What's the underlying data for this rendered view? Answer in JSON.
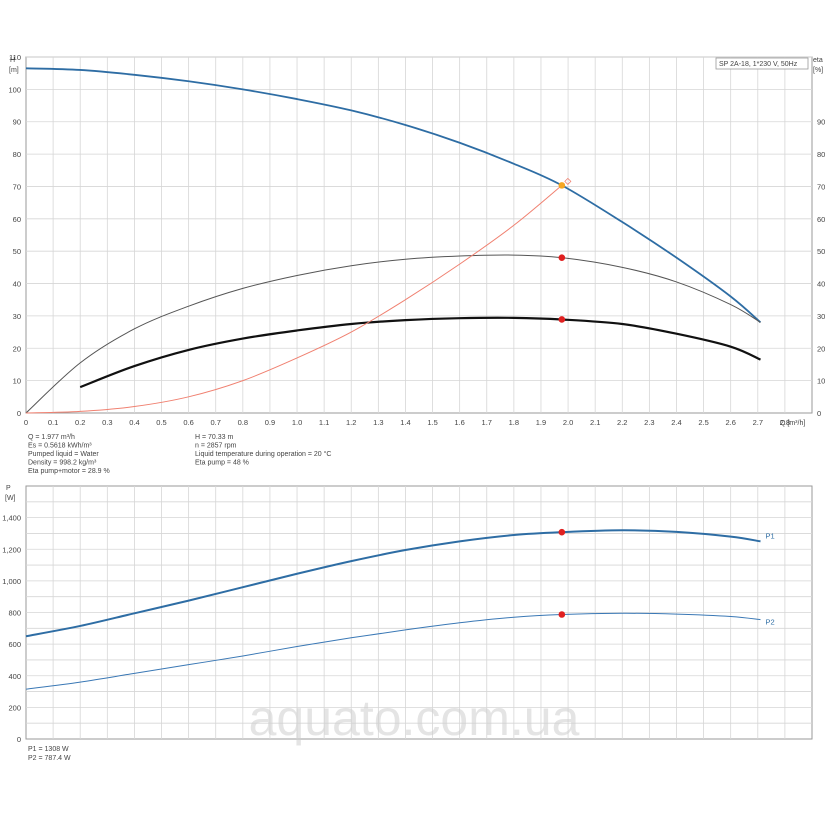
{
  "chart_data": [
    {
      "type": "line",
      "title": "SP 2A-18, 1*230 V, 50Hz",
      "xlabel": "Q [m³/h]",
      "ylabel_left": [
        "H",
        "[m]"
      ],
      "ylabel_right": [
        "eta",
        "[%]"
      ],
      "xlim": [
        0,
        2.9
      ],
      "ylim": [
        0,
        110
      ],
      "y2lim": [
        0,
        110
      ],
      "grid": true,
      "x_ticks": [
        "0",
        "0.1",
        "0.2",
        "0.3",
        "0.4",
        "0.5",
        "0.6",
        "0.7",
        "0.8",
        "0.9",
        "1.0",
        "1.1",
        "1.2",
        "1.3",
        "1.4",
        "1.5",
        "1.6",
        "1.7",
        "1.8",
        "1.9",
        "2.0",
        "2.1",
        "2.2",
        "2.3",
        "2.4",
        "2.5",
        "2.6",
        "2.7",
        "2.8"
      ],
      "y_ticks_left": [
        "0",
        "10",
        "20",
        "30",
        "40",
        "50",
        "60",
        "70",
        "80",
        "90",
        "100",
        "110"
      ],
      "y_ticks_right": [
        "0",
        "10",
        "20",
        "30",
        "40",
        "50",
        "60",
        "70",
        "80",
        "90"
      ],
      "series": [
        {
          "color": "#2e6da4",
          "axis": "left",
          "x": [
            0,
            0.2,
            0.4,
            0.6,
            0.8,
            1.0,
            1.2,
            1.4,
            1.6,
            1.8,
            1.977,
            2.2,
            2.4,
            2.6,
            2.71
          ],
          "values": [
            106.5,
            106,
            104.5,
            102.5,
            100,
            97,
            93.5,
            89,
            83.5,
            77,
            70.33,
            59,
            48,
            36,
            28
          ]
        },
        {
          "color": "#555555",
          "axis": "right",
          "x": [
            0,
            0.2,
            0.4,
            0.6,
            0.8,
            1.0,
            1.2,
            1.4,
            1.6,
            1.8,
            1.977,
            2.2,
            2.4,
            2.6,
            2.71
          ],
          "values": [
            0,
            15.5,
            26,
            33,
            38.5,
            42.5,
            45.5,
            47.5,
            48.5,
            48.8,
            48,
            45,
            40.5,
            33.5,
            28
          ]
        },
        {
          "color": "#111111",
          "axis": "right",
          "x": [
            0.2,
            0.4,
            0.6,
            0.8,
            1.0,
            1.2,
            1.4,
            1.6,
            1.8,
            1.977,
            2.2,
            2.4,
            2.6,
            2.71
          ],
          "values": [
            8,
            14.5,
            19.5,
            23,
            25.5,
            27.5,
            28.7,
            29.3,
            29.4,
            28.9,
            27.5,
            24.5,
            20.5,
            16.5
          ]
        },
        {
          "color": "#f08070",
          "axis": "left",
          "x": [
            0,
            0.2,
            0.4,
            0.6,
            0.8,
            1.0,
            1.2,
            1.4,
            1.6,
            1.8,
            1.977
          ],
          "values": [
            0,
            0.5,
            2,
            5,
            10,
            17,
            25,
            35,
            46,
            58,
            70.33
          ]
        }
      ],
      "markers": [
        {
          "x": 1.977,
          "y": 70.33,
          "color": "#f5a623",
          "axis": "left"
        },
        {
          "x": 1.977,
          "y": 48,
          "color": "#e02020",
          "axis": "right"
        },
        {
          "x": 1.977,
          "y": 28.9,
          "color": "#e02020",
          "axis": "right"
        }
      ],
      "annotations": [
        {
          "text": "Q = 1.977 m³/h"
        },
        {
          "text": "Es = 0.5618 kWh/m³"
        },
        {
          "text": "Pumped liquid = Water"
        },
        {
          "text": "Density = 998.2 kg/m³"
        },
        {
          "text": "Eta pump+motor = 28.9 %"
        },
        {
          "text": "H = 70.33 m"
        },
        {
          "text": "n = 2857 rpm"
        },
        {
          "text": "Liquid temperature during operation = 20 °C"
        },
        {
          "text": "Eta pump = 48 %"
        }
      ]
    },
    {
      "type": "line",
      "title": "",
      "ylabel_left": [
        "P",
        "[W]"
      ],
      "xlim": [
        0,
        2.9
      ],
      "ylim": [
        0,
        1600
      ],
      "grid": true,
      "y_ticks": [
        "0",
        "200",
        "400",
        "600",
        "800",
        "1,000",
        "1,200",
        "1,400"
      ],
      "series": [
        {
          "name": "P1",
          "color": "#2e6da4",
          "x": [
            0,
            0.2,
            0.4,
            0.6,
            0.8,
            1.0,
            1.2,
            1.4,
            1.6,
            1.8,
            1.977,
            2.2,
            2.4,
            2.6,
            2.71
          ],
          "values": [
            650,
            715,
            795,
            875,
            960,
            1045,
            1125,
            1195,
            1250,
            1290,
            1308,
            1320,
            1310,
            1280,
            1250
          ]
        },
        {
          "name": "P2",
          "color": "#3a78b5",
          "x": [
            0,
            0.2,
            0.4,
            0.6,
            0.8,
            1.0,
            1.2,
            1.4,
            1.6,
            1.8,
            1.977,
            2.2,
            2.4,
            2.6,
            2.71
          ],
          "values": [
            315,
            360,
            415,
            470,
            525,
            585,
            640,
            690,
            735,
            770,
            787.4,
            795,
            790,
            775,
            755
          ]
        }
      ],
      "markers": [
        {
          "x": 1.977,
          "y": 1308,
          "color": "#e02020"
        },
        {
          "x": 1.977,
          "y": 787.4,
          "color": "#e02020"
        }
      ],
      "annotations": [
        {
          "text": "P1 = 1308 W"
        },
        {
          "text": "P2 = 787.4 W"
        }
      ]
    }
  ],
  "watermark": "aquato.com.ua"
}
